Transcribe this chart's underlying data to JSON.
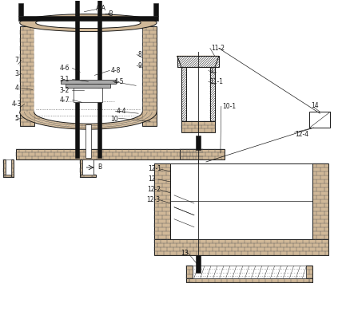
{
  "bg_color": "#ffffff",
  "line_color": "#1a1a1a",
  "brick_fill": "#d0b898",
  "brick_line": "#555555",
  "black": "#111111"
}
